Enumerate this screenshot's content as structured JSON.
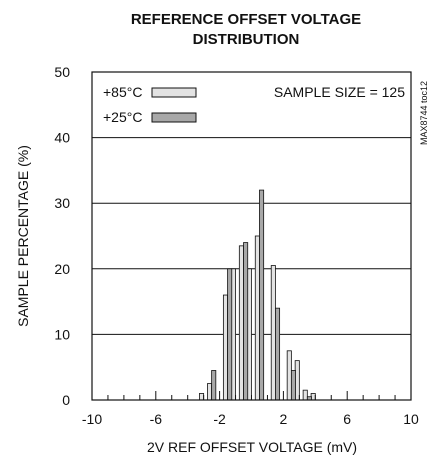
{
  "chart_data": {
    "type": "bar",
    "title": [
      "REFERENCE OFFSET VOLTAGE",
      "DISTRIBUTION"
    ],
    "xlabel": "2V REF OFFSET VOLTAGE (mV)",
    "ylabel": "SAMPLE PERCENTAGE (%)",
    "xlim": [
      -10,
      10
    ],
    "ylim": [
      0,
      50
    ],
    "x_ticks": [
      -10,
      -6,
      -2,
      2,
      6,
      10
    ],
    "x_tick_labels": [
      "-10",
      "-6",
      "-2",
      "2",
      "6",
      "10"
    ],
    "y_ticks": [
      0,
      10,
      20,
      30,
      40,
      50
    ],
    "y_tick_labels": [
      "0",
      "10",
      "20",
      "30",
      "40",
      "50"
    ],
    "grid": "horizontal",
    "annotation": "SAMPLE SIZE = 125",
    "side_label": "MAX8744 toc12",
    "legend_position": "top-left",
    "x": [
      -3.5,
      -3.0,
      -2.5,
      -2.0,
      -1.5,
      -1.0,
      -0.5,
      0.0,
      0.5,
      1.0,
      1.5,
      2.0,
      2.5,
      3.0,
      3.5,
      4.0,
      4.5
    ],
    "series": [
      {
        "name": "+85°C",
        "color": "#e3e3e3",
        "values": [
          0,
          1,
          2.5,
          0,
          16,
          20,
          23.5,
          20,
          25,
          0,
          20.5,
          0,
          7.5,
          6,
          1.5,
          1,
          0
        ]
      },
      {
        "name": "+25°C",
        "color": "#a8a8a8",
        "values": [
          0,
          0,
          4.5,
          0,
          20,
          0,
          24,
          0,
          32,
          0,
          14,
          0,
          4.5,
          0,
          0.5,
          0,
          0
        ]
      }
    ]
  }
}
